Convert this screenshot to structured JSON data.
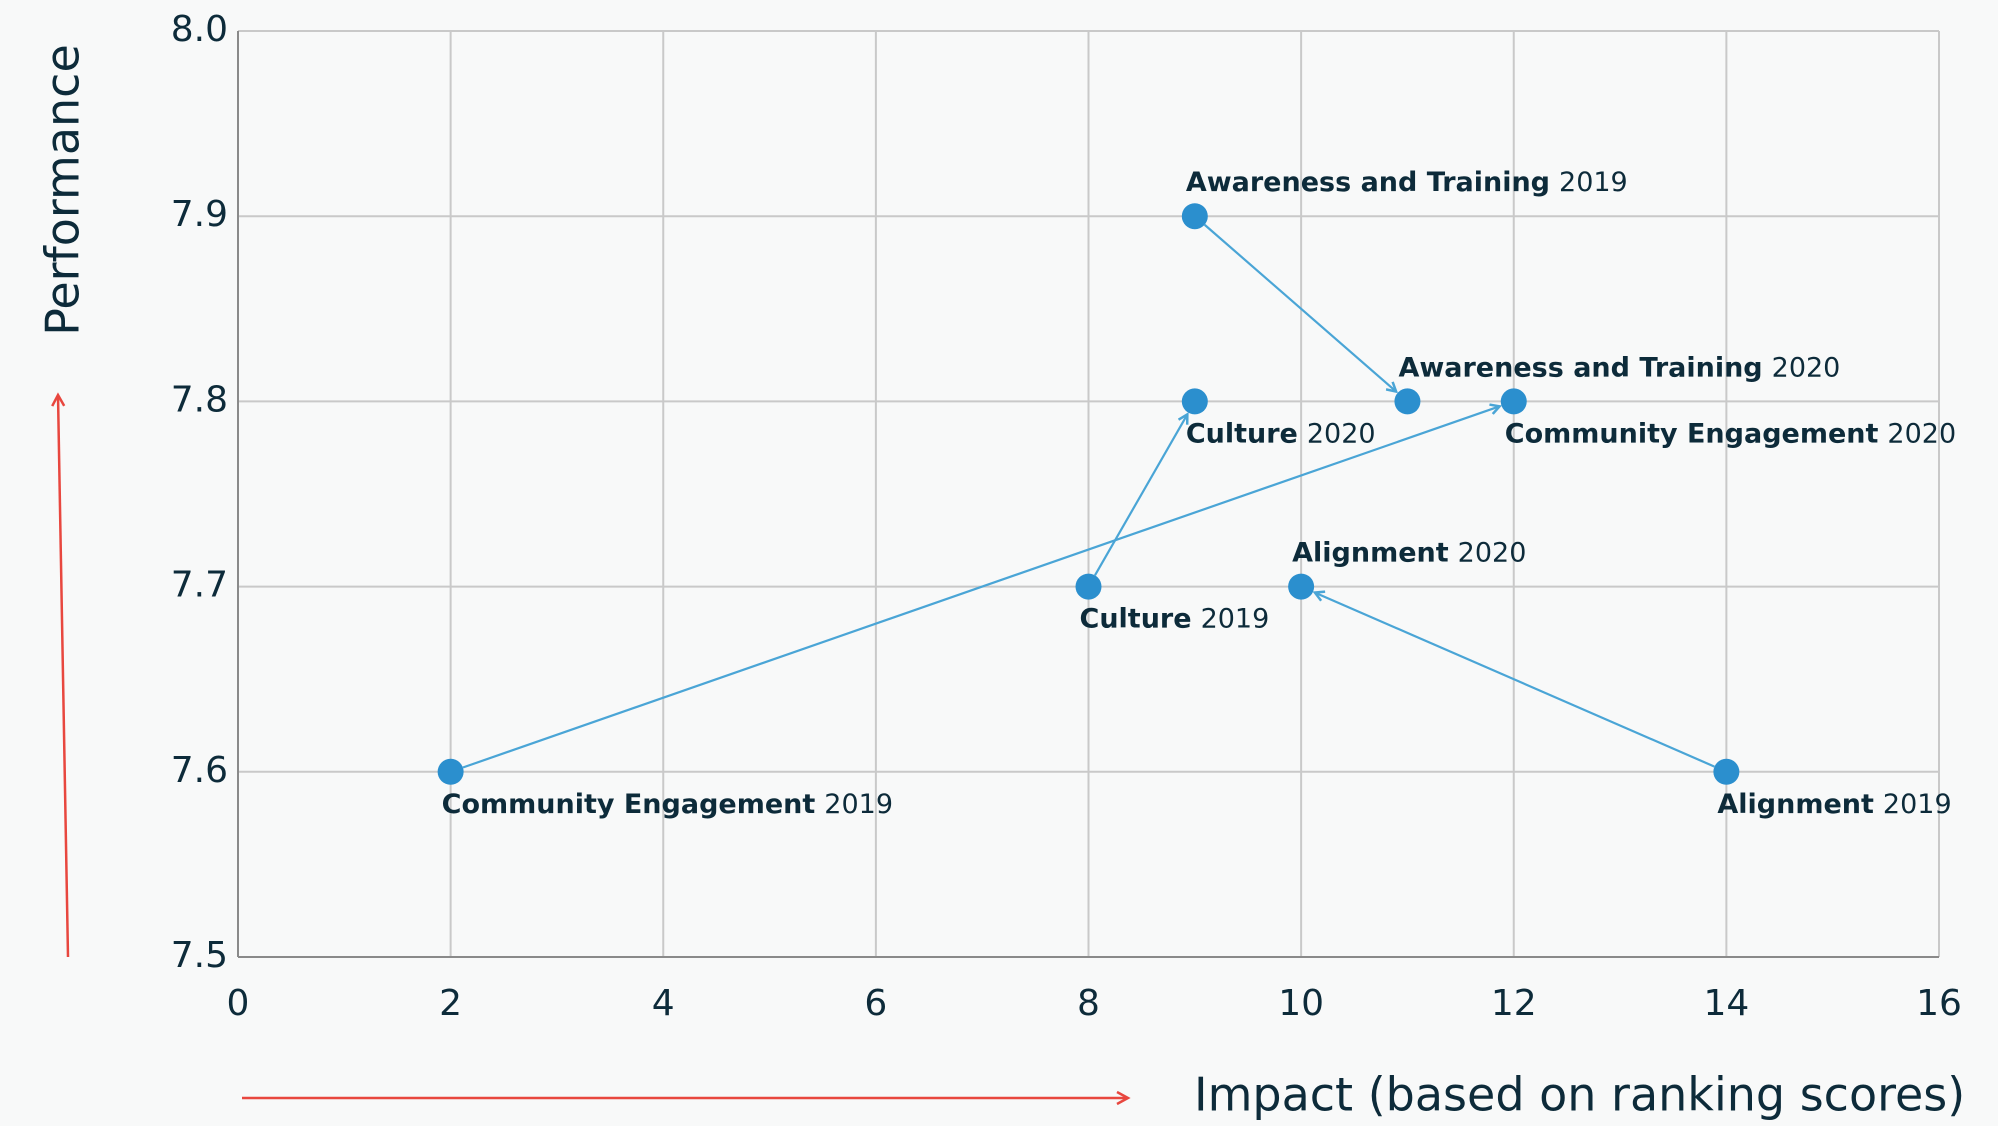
{
  "chart_data": {
    "type": "scatter",
    "xlabel": "Impact (based on ranking scores)",
    "ylabel": "Performance",
    "xlim": [
      0,
      16
    ],
    "xticks": [
      0,
      2,
      4,
      6,
      8,
      10,
      12,
      14,
      16
    ],
    "ylim": [
      7.5,
      8.0
    ],
    "yticks": [
      7.5,
      7.6,
      7.7,
      7.8,
      7.9,
      {
        "value": 8.0,
        "label": "8.0"
      }
    ],
    "grid": true,
    "color": "#2b8fce",
    "arrow_color": "#4aa5d6",
    "series": [
      {
        "name": "Awareness and Training",
        "x": [
          9,
          11
        ],
        "values": [
          7.9,
          7.8
        ],
        "labels": [
          "2019",
          "2020"
        ]
      },
      {
        "name": "Culture",
        "x": [
          8,
          9
        ],
        "values": [
          7.7,
          7.8
        ],
        "labels": [
          "2019",
          "2020"
        ]
      },
      {
        "name": "Community Engagement",
        "x": [
          2,
          12
        ],
        "values": [
          7.6,
          7.8
        ],
        "labels": [
          "2019",
          "2020"
        ]
      },
      {
        "name": "Alignment",
        "x": [
          14,
          10
        ],
        "values": [
          7.6,
          7.7
        ],
        "labels": [
          "2019",
          "2020"
        ]
      }
    ]
  }
}
